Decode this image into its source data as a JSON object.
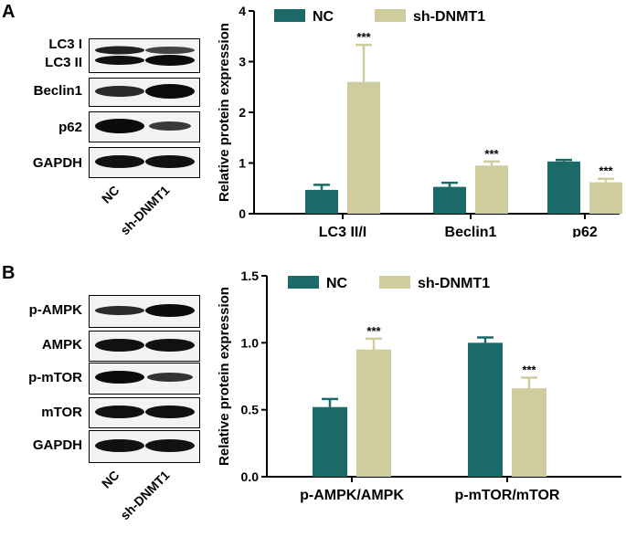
{
  "panels": [
    {
      "letter": "A",
      "blot": {
        "rows": [
          {
            "labels": [
              "LC3 I",
              "LC3 II"
            ]
          },
          {
            "labels": [
              "Beclin1"
            ]
          },
          {
            "labels": [
              "p62"
            ]
          },
          {
            "labels": [
              "GAPDH"
            ]
          }
        ],
        "lanes": [
          "NC",
          "sh-DNMT1"
        ]
      }
    },
    {
      "letter": "B",
      "blot": {
        "rows": [
          {
            "labels": [
              "p-AMPK"
            ]
          },
          {
            "labels": [
              "AMPK"
            ]
          },
          {
            "labels": [
              "p-mTOR"
            ]
          },
          {
            "labels": [
              "mTOR"
            ]
          },
          {
            "labels": [
              "GAPDH"
            ]
          }
        ],
        "lanes": [
          "NC",
          "sh-DNMT1"
        ]
      }
    }
  ],
  "colors": {
    "nc": "#1a6b68",
    "sh": "#cfcc9d"
  },
  "chart_data": [
    {
      "type": "bar",
      "categories": [
        "LC3 II/I",
        "Beclin1",
        "p62"
      ],
      "series": [
        {
          "name": "NC",
          "values": [
            0.47,
            0.53,
            1.03
          ],
          "errors": [
            0.1,
            0.08,
            0.03
          ]
        },
        {
          "name": "sh-DNMT1",
          "values": [
            2.6,
            0.95,
            0.62
          ],
          "errors": [
            0.73,
            0.08,
            0.07
          ]
        }
      ],
      "significance": [
        "***",
        "***",
        "***"
      ],
      "ylabel": "Relative protein expression",
      "ylim": [
        0,
        4
      ],
      "yticks": [
        "0",
        "1",
        "2",
        "3",
        "4"
      ],
      "legend": "top"
    },
    {
      "type": "bar",
      "categories": [
        "p-AMPK/AMPK",
        "p-mTOR/mTOR"
      ],
      "series": [
        {
          "name": "NC",
          "values": [
            0.52,
            1.0
          ],
          "errors": [
            0.06,
            0.04
          ]
        },
        {
          "name": "sh-DNMT1",
          "values": [
            0.95,
            0.66
          ],
          "errors": [
            0.08,
            0.08
          ]
        }
      ],
      "significance": [
        "***",
        "***"
      ],
      "ylabel": "Relative protein expression",
      "ylim": [
        0,
        1.5
      ],
      "yticks": [
        "0.0",
        "0.5",
        "1.0",
        "1.5"
      ],
      "legend": "top"
    }
  ]
}
